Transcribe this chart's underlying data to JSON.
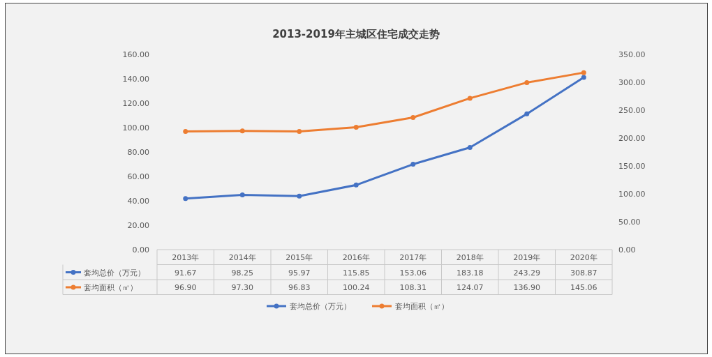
{
  "chart_data": {
    "type": "line",
    "title": "2013-2019年主城区住宅成交走势",
    "categories": [
      "2013年",
      "2014年",
      "2015年",
      "2016年",
      "2017年",
      "2018年",
      "2019年",
      "2020年"
    ],
    "series": [
      {
        "name": "套均总价（万元）",
        "color": "#4472c4",
        "axis": "y2",
        "values": [
          91.67,
          98.25,
          95.97,
          115.85,
          153.06,
          183.18,
          243.29,
          308.87
        ],
        "value_labels": [
          "91.67",
          "98.25",
          "95.97",
          "115.85",
          "153.06",
          "183.18",
          "243.29",
          "308.87"
        ]
      },
      {
        "name": "套均面积（㎡）",
        "color": "#ed7d31",
        "values": [
          96.9,
          97.3,
          96.83,
          100.24,
          108.31,
          124.07,
          136.9,
          145.06
        ],
        "value_labels": [
          "96.90",
          "97.30",
          "96.83",
          "100.24",
          "108.31",
          "124.07",
          "136.90",
          "145.06"
        ]
      }
    ],
    "ylim": [
      0,
      160
    ],
    "yticks": [
      {
        "value": 0,
        "label": "0.00"
      },
      {
        "value": 20,
        "label": "20.00"
      },
      {
        "value": 40,
        "label": "40.00"
      },
      {
        "value": 60,
        "label": "60.00"
      },
      {
        "value": 80,
        "label": "80.00"
      },
      {
        "value": 100,
        "label": "100.00"
      },
      {
        "value": 120,
        "label": "120.00"
      },
      {
        "value": 140,
        "label": "140.00"
      },
      {
        "value": 160,
        "label": "160.00"
      }
    ],
    "y2lim": [
      0,
      350
    ],
    "y2ticks": [
      {
        "value": 0,
        "label": "0.00"
      },
      {
        "value": 50,
        "label": "50.00"
      },
      {
        "value": 100,
        "label": "100.00"
      },
      {
        "value": 150,
        "label": "150.00"
      },
      {
        "value": 200,
        "label": "200.00"
      },
      {
        "value": 250,
        "label": "250.00"
      },
      {
        "value": 300,
        "label": "300.00"
      },
      {
        "value": 350,
        "label": "350.00"
      }
    ],
    "marker": "circle",
    "line_style": "solid",
    "legend": "bottom"
  }
}
